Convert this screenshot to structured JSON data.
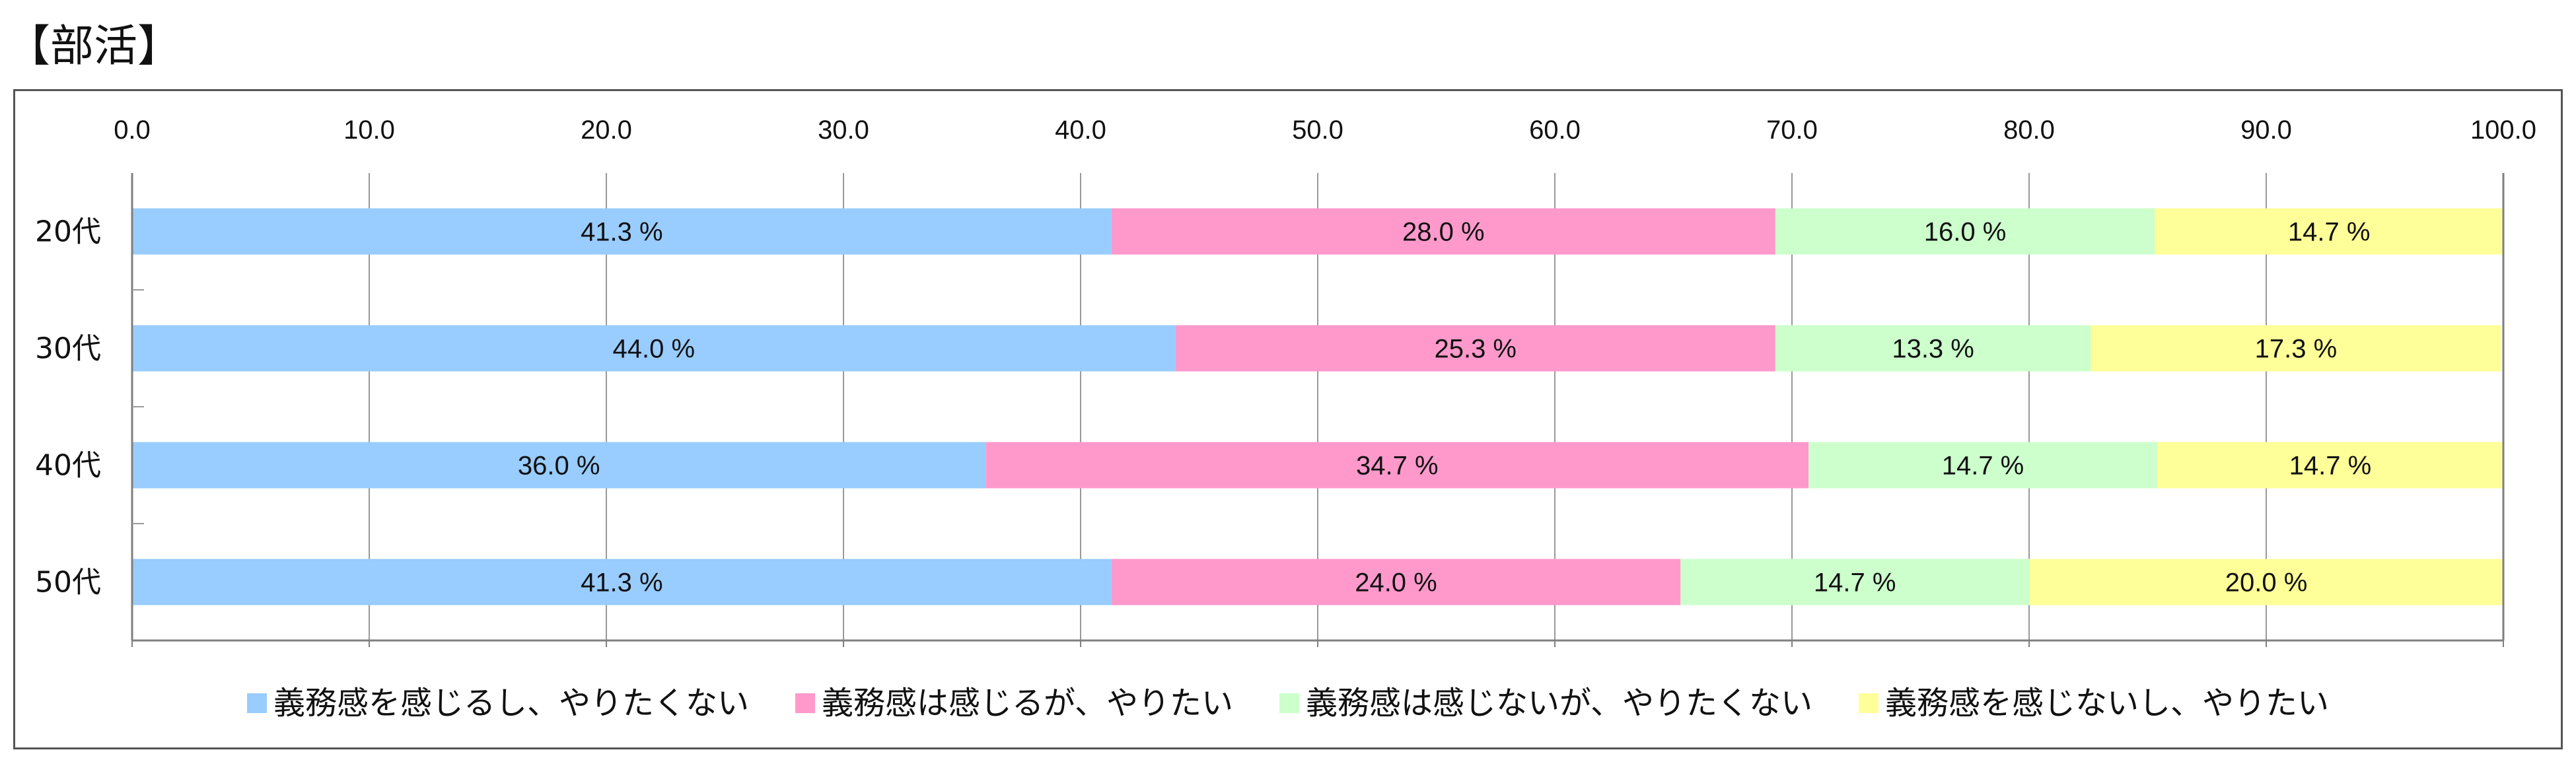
{
  "page_title": "【部活】",
  "colors": {
    "series": [
      "#99CCFF",
      "#FF99CC",
      "#CCFFCC",
      "#FFFF99"
    ],
    "grid": "#999999",
    "axis": "#7F7F7F"
  },
  "chart_data": {
    "type": "bar",
    "orientation": "horizontal",
    "stacked": true,
    "categories": [
      "20代",
      "30代",
      "40代",
      "50代"
    ],
    "series": [
      {
        "name": "義務感を感じるし、やりたくない",
        "values": [
          41.3,
          44.0,
          36.0,
          41.3
        ],
        "labels": [
          "41.3 %",
          "44.0 %",
          "36.0 %",
          "41.3 %"
        ]
      },
      {
        "name": "義務感は感じるが、やりたい",
        "values": [
          28.0,
          25.3,
          34.7,
          24.0
        ],
        "labels": [
          "28.0 %",
          "25.3 %",
          "34.7 %",
          "24.0 %"
        ]
      },
      {
        "name": "義務感は感じないが、やりたくない",
        "values": [
          16.0,
          13.3,
          14.7,
          14.7
        ],
        "labels": [
          "16.0 %",
          "13.3 %",
          "14.7 %",
          "14.7 %"
        ]
      },
      {
        "name": "義務感を感じないし、やりたい",
        "values": [
          14.7,
          17.3,
          14.7,
          20.0
        ],
        "labels": [
          "14.7 %",
          "17.3 %",
          "14.7 %",
          "20.0 %"
        ]
      }
    ],
    "xlim": [
      0,
      100
    ],
    "xticks": [
      "0.0",
      "10.0",
      "20.0",
      "30.0",
      "40.0",
      "50.0",
      "60.0",
      "70.0",
      "80.0",
      "90.0",
      "100.0"
    ],
    "x_axis_position": "top",
    "grid": true,
    "legend_position": "bottom"
  }
}
